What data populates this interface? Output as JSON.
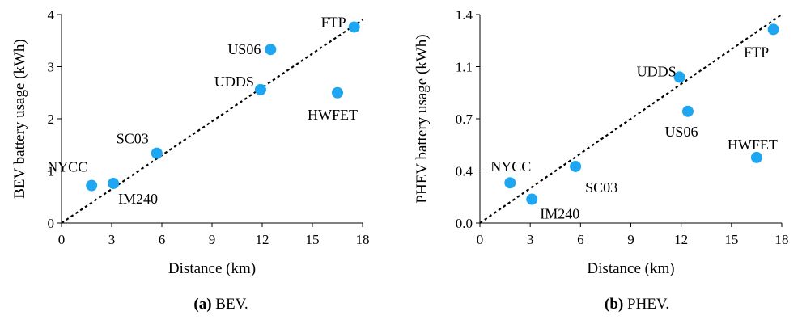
{
  "chart_data": [
    {
      "type": "scatter",
      "caption_prefix": "(a)",
      "caption_text": " BEV.",
      "xlabel": "Distance (km)",
      "ylabel": "BEV battery usage (kWh)",
      "xlim": [
        0,
        18
      ],
      "ylim": [
        0,
        4
      ],
      "xticks": [
        "0",
        "3",
        "6",
        "9",
        "12",
        "15",
        "18"
      ],
      "xtick_values": [
        0,
        3,
        6,
        9,
        12,
        15,
        18
      ],
      "yticks": [
        "0",
        "1",
        "2",
        "3",
        "4"
      ],
      "ytick_values": [
        0,
        1,
        2,
        3,
        4
      ],
      "grid": false,
      "marker_color": "#1ea7f0",
      "trend_line": {
        "style": "dotted",
        "from": [
          0,
          0
        ],
        "to": [
          18,
          3.9
        ]
      },
      "points": [
        {
          "label": "NYCC",
          "x": 1.8,
          "y": 0.72
        },
        {
          "label": "IM240",
          "x": 3.1,
          "y": 0.76
        },
        {
          "label": "SC03",
          "x": 5.7,
          "y": 1.34
        },
        {
          "label": "UDDS",
          "x": 11.9,
          "y": 2.56
        },
        {
          "label": "US06",
          "x": 12.5,
          "y": 3.33
        },
        {
          "label": "HWFET",
          "x": 16.5,
          "y": 2.5
        },
        {
          "label": "FTP",
          "x": 17.5,
          "y": 3.76
        }
      ]
    },
    {
      "type": "scatter",
      "caption_prefix": "(b)",
      "caption_text": " PHEV.",
      "xlabel": "Distance (km)",
      "ylabel": "PHEV battery usage (kWh)",
      "xlim": [
        0,
        18
      ],
      "ylim": [
        0,
        1.4
      ],
      "xticks": [
        "0",
        "3",
        "6",
        "9",
        "12",
        "15",
        "18"
      ],
      "xtick_values": [
        0,
        3,
        6,
        9,
        12,
        15,
        18
      ],
      "yticks": [
        "0.0",
        "0.4",
        "0.7",
        "1.1",
        "1.4"
      ],
      "ytick_values": [
        0,
        0.35,
        0.7,
        1.05,
        1.4
      ],
      "grid": false,
      "marker_color": "#1ea7f0",
      "trend_line": {
        "style": "dotted",
        "from": [
          0,
          0
        ],
        "to": [
          18,
          1.4
        ]
      },
      "points": [
        {
          "label": "NYCC",
          "x": 1.8,
          "y": 0.27
        },
        {
          "label": "IM240",
          "x": 3.1,
          "y": 0.16
        },
        {
          "label": "SC03",
          "x": 5.7,
          "y": 0.38
        },
        {
          "label": "UDDS",
          "x": 11.9,
          "y": 0.98
        },
        {
          "label": "US06",
          "x": 12.4,
          "y": 0.75
        },
        {
          "label": "HWFET",
          "x": 16.5,
          "y": 0.44
        },
        {
          "label": "FTP",
          "x": 17.5,
          "y": 1.3
        }
      ]
    }
  ]
}
